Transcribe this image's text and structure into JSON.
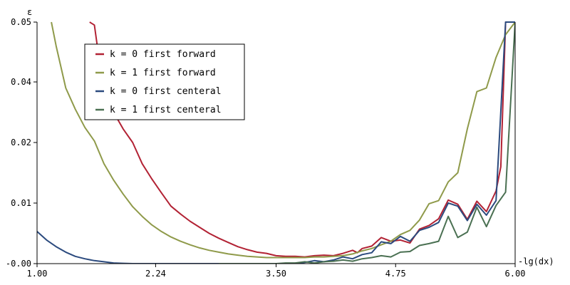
{
  "chart_data": {
    "type": "line",
    "xlabel": "-lg(dx)",
    "ylabel": "ε",
    "xlim": [
      1.0,
      6.0
    ],
    "ylim": [
      0.0,
      0.05
    ],
    "x_ticks": [
      1.0,
      2.24,
      3.5,
      4.75,
      6.0
    ],
    "x_tick_labels": [
      "1.00",
      "2.24",
      "3.50",
      "4.75",
      "6.00"
    ],
    "y_ticks": [
      0.0,
      0.01,
      0.02,
      0.04,
      0.05
    ],
    "y_tick_labels": [
      "-0.00",
      "0.01",
      "0.02",
      "0.04",
      "0.05"
    ],
    "legend_position": "top-left",
    "series": [
      {
        "name": "k = 0 first forward",
        "color": "#b22234",
        "points": [
          [
            1.55,
            0.05
          ],
          [
            1.6,
            0.0495
          ],
          [
            1.7,
            0.036
          ],
          [
            1.8,
            0.03
          ],
          [
            1.9,
            0.0245
          ],
          [
            2.0,
            0.02
          ],
          [
            2.1,
            0.0165
          ],
          [
            2.2,
            0.014
          ],
          [
            2.3,
            0.0117
          ],
          [
            2.4,
            0.0095
          ],
          [
            2.5,
            0.0082
          ],
          [
            2.6,
            0.007
          ],
          [
            2.7,
            0.006
          ],
          [
            2.8,
            0.005
          ],
          [
            2.9,
            0.0042
          ],
          [
            3.0,
            0.0035
          ],
          [
            3.1,
            0.0028
          ],
          [
            3.2,
            0.0023
          ],
          [
            3.3,
            0.0019
          ],
          [
            3.4,
            0.0017
          ],
          [
            3.5,
            0.0013
          ],
          [
            3.6,
            0.0012
          ],
          [
            3.7,
            0.0012
          ],
          [
            3.8,
            0.0011
          ],
          [
            3.9,
            0.0013
          ],
          [
            4.0,
            0.0014
          ],
          [
            4.1,
            0.0013
          ],
          [
            4.2,
            0.0017
          ],
          [
            4.3,
            0.0022
          ],
          [
            4.35,
            0.0018
          ],
          [
            4.4,
            0.0025
          ],
          [
            4.5,
            0.0029
          ],
          [
            4.6,
            0.0043
          ],
          [
            4.7,
            0.0037
          ],
          [
            4.8,
            0.0039
          ],
          [
            4.9,
            0.0034
          ],
          [
            5.0,
            0.0057
          ],
          [
            5.1,
            0.0063
          ],
          [
            5.2,
            0.0074
          ],
          [
            5.3,
            0.0105
          ],
          [
            5.4,
            0.0098
          ],
          [
            5.5,
            0.0073
          ],
          [
            5.6,
            0.0103
          ],
          [
            5.7,
            0.0086
          ],
          [
            5.8,
            0.012
          ],
          [
            5.85,
            0.016
          ],
          [
            5.9,
            0.05
          ],
          [
            6.0,
            0.05
          ]
        ]
      },
      {
        "name": "k = 1 first forward",
        "color": "#8f9a4a",
        "points": [
          [
            1.15,
            0.05
          ],
          [
            1.2,
            0.046
          ],
          [
            1.3,
            0.038
          ],
          [
            1.4,
            0.031
          ],
          [
            1.5,
            0.025
          ],
          [
            1.6,
            0.0205
          ],
          [
            1.7,
            0.0165
          ],
          [
            1.8,
            0.0138
          ],
          [
            1.9,
            0.0115
          ],
          [
            2.0,
            0.0094
          ],
          [
            2.1,
            0.0078
          ],
          [
            2.2,
            0.0064
          ],
          [
            2.3,
            0.0053
          ],
          [
            2.4,
            0.0044
          ],
          [
            2.5,
            0.0037
          ],
          [
            2.6,
            0.0031
          ],
          [
            2.7,
            0.0026
          ],
          [
            2.8,
            0.0022
          ],
          [
            2.9,
            0.0019
          ],
          [
            3.0,
            0.0016
          ],
          [
            3.1,
            0.0014
          ],
          [
            3.2,
            0.0012
          ],
          [
            3.3,
            0.0011
          ],
          [
            3.4,
            0.001
          ],
          [
            3.5,
            0.001
          ],
          [
            3.6,
            0.001
          ],
          [
            3.7,
            0.001
          ],
          [
            3.8,
            0.001
          ],
          [
            3.9,
            0.0011
          ],
          [
            4.0,
            0.0011
          ],
          [
            4.1,
            0.0012
          ],
          [
            4.2,
            0.0013
          ],
          [
            4.3,
            0.0016
          ],
          [
            4.4,
            0.0021
          ],
          [
            4.5,
            0.0025
          ],
          [
            4.6,
            0.0031
          ],
          [
            4.7,
            0.0037
          ],
          [
            4.8,
            0.0048
          ],
          [
            4.9,
            0.0055
          ],
          [
            5.0,
            0.0072
          ],
          [
            5.1,
            0.0099
          ],
          [
            5.2,
            0.0104
          ],
          [
            5.3,
            0.0135
          ],
          [
            5.4,
            0.015
          ],
          [
            5.5,
            0.0245
          ],
          [
            5.6,
            0.0368
          ],
          [
            5.7,
            0.038
          ],
          [
            5.8,
            0.0441
          ],
          [
            5.9,
            0.0479
          ],
          [
            6.0,
            0.05
          ]
        ]
      },
      {
        "name": "k = 0 first centeral",
        "color": "#2b4a7e",
        "points": [
          [
            1.0,
            0.0053
          ],
          [
            1.1,
            0.0039
          ],
          [
            1.2,
            0.0028
          ],
          [
            1.3,
            0.0019
          ],
          [
            1.4,
            0.0012
          ],
          [
            1.5,
            0.0008
          ],
          [
            1.6,
            0.0005
          ],
          [
            1.7,
            0.0003
          ],
          [
            1.8,
            0.0001
          ],
          [
            1.9,
            5e-05
          ],
          [
            2.0,
            0.0
          ],
          [
            3.7,
            0.0
          ],
          [
            3.8,
            0.0002
          ],
          [
            3.9,
            0.0005
          ],
          [
            4.0,
            0.0003
          ],
          [
            4.1,
            0.0006
          ],
          [
            4.2,
            0.0011
          ],
          [
            4.3,
            0.0008
          ],
          [
            4.4,
            0.0015
          ],
          [
            4.5,
            0.0018
          ],
          [
            4.6,
            0.0036
          ],
          [
            4.7,
            0.0033
          ],
          [
            4.8,
            0.0045
          ],
          [
            4.9,
            0.0037
          ],
          [
            5.0,
            0.0055
          ],
          [
            5.1,
            0.006
          ],
          [
            5.2,
            0.0068
          ],
          [
            5.3,
            0.01
          ],
          [
            5.4,
            0.0095
          ],
          [
            5.5,
            0.0071
          ],
          [
            5.6,
            0.0098
          ],
          [
            5.7,
            0.008
          ],
          [
            5.8,
            0.0104
          ],
          [
            5.9,
            0.05
          ],
          [
            6.0,
            0.05
          ]
        ]
      },
      {
        "name": "k = 1 first centeral",
        "color": "#4a7052",
        "points": [
          [
            2.9,
            0.0
          ],
          [
            3.5,
            0.0
          ],
          [
            3.6,
            0.0001
          ],
          [
            3.7,
            0.0001
          ],
          [
            3.8,
            0.0003
          ],
          [
            3.9,
            0.0001
          ],
          [
            4.0,
            0.0003
          ],
          [
            4.1,
            0.0004
          ],
          [
            4.2,
            0.0006
          ],
          [
            4.3,
            0.0004
          ],
          [
            4.4,
            0.0008
          ],
          [
            4.5,
            0.001
          ],
          [
            4.6,
            0.0013
          ],
          [
            4.7,
            0.0011
          ],
          [
            4.8,
            0.0019
          ],
          [
            4.9,
            0.002
          ],
          [
            5.0,
            0.003
          ],
          [
            5.1,
            0.0033
          ],
          [
            5.2,
            0.0037
          ],
          [
            5.3,
            0.0078
          ],
          [
            5.4,
            0.0043
          ],
          [
            5.5,
            0.0052
          ],
          [
            5.6,
            0.0093
          ],
          [
            5.7,
            0.0061
          ],
          [
            5.8,
            0.0096
          ],
          [
            5.9,
            0.0118
          ],
          [
            6.0,
            0.05
          ]
        ]
      }
    ]
  }
}
